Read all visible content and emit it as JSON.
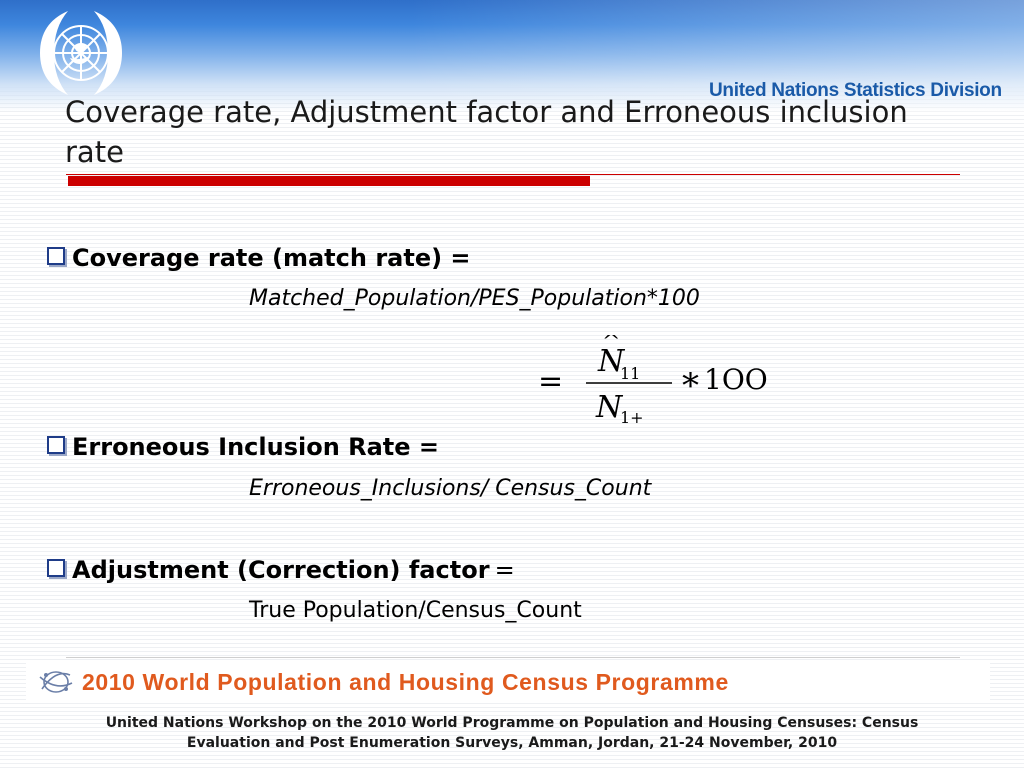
{
  "slide": {
    "title": "Coverage rate, Adjustment factor and Erroneous inclusion rate"
  },
  "header": {
    "org_name": "United Nations Statistics Division",
    "emblem_icon": "un-emblem-icon"
  },
  "bullets": [
    {
      "label": "Coverage rate (match rate) =",
      "equals": "",
      "formula": "Matched_Population/PES_Population*100"
    },
    {
      "label": "Erroneous Inclusion Rate =",
      "equals": "",
      "formula": "Erroneous_Inclusions/ Census_Count"
    },
    {
      "label": "Adjustment (Correction) factor",
      "equals": "=",
      "formula": "True Population/Census_Count"
    }
  ],
  "equation": {
    "equals_sign": "=",
    "numerator": "N",
    "numerator_sub": "11",
    "denominator": "N",
    "denominator_sub": "1+",
    "multiplier": "*",
    "factor": "1OO"
  },
  "footer": {
    "banner": "2010 World Population and Housing Census Programme",
    "workshop_line1": "United Nations Workshop on the 2010 World Programme on Population and Housing Censuses: Census",
    "workshop_line2": "Evaluation and Post Enumeration Surveys, Amman, Jordan, 21-24 November, 2010"
  },
  "colors": {
    "accent_red": "#cc0000",
    "header_blue": "#3e86dd",
    "banner_orange": "#e05a1e"
  }
}
